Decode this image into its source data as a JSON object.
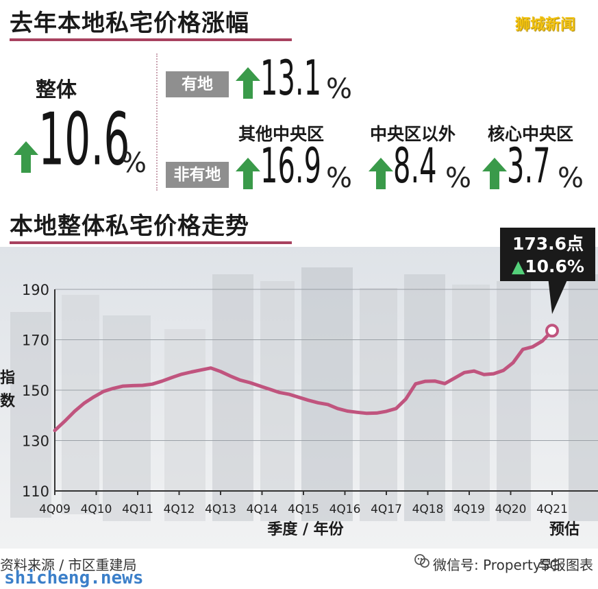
{
  "header": {
    "title": "去年本地私宅价格涨幅",
    "brand": "狮城新闻"
  },
  "summary": {
    "overall": {
      "label": "整体",
      "value": "10.6",
      "unit": "%"
    },
    "landed": {
      "tag": "有地",
      "value": "13.1",
      "unit": "%"
    },
    "non_landed": {
      "tag": "非有地",
      "value": "16.9",
      "unit": "%",
      "region": "其他中央区",
      "regions": [
        {
          "name": "中央区以外",
          "value": "8.4",
          "unit": "%"
        },
        {
          "name": "核心中央区",
          "value": "3.7",
          "unit": "%"
        }
      ]
    }
  },
  "chart_section": {
    "title": "本地整体私宅价格走势"
  },
  "chart_data": {
    "type": "line",
    "ylabel": "指数",
    "xlabel": "季度 / 年份",
    "ylim": [
      110,
      190
    ],
    "yticks": [
      110,
      130,
      150,
      170,
      190
    ],
    "grid": true,
    "x_tick_labels": [
      "4Q09",
      "4Q10",
      "4Q11",
      "4Q12",
      "4Q13",
      "4Q14",
      "4Q15",
      "4Q16",
      "4Q17",
      "4Q18",
      "4Q19",
      "4Q20",
      "4Q21"
    ],
    "forecast_label": "预估",
    "series": [
      {
        "values": [
          134.0,
          137.6,
          141.5,
          144.8,
          147.3,
          149.5,
          150.7,
          151.6,
          151.8,
          151.9,
          152.4,
          153.6,
          155.0,
          156.3,
          157.2,
          158.0,
          158.8,
          157.4,
          155.6,
          154.0,
          153.0,
          151.7,
          150.4,
          149.1,
          148.4,
          147.2,
          146.0,
          145.0,
          144.3,
          142.7,
          141.7,
          141.2,
          140.8,
          140.9,
          141.6,
          142.7,
          146.5,
          152.5,
          153.5,
          153.6,
          152.6,
          154.8,
          157.0,
          157.6,
          156.2,
          156.5,
          157.8,
          160.9,
          166.2,
          167.2,
          169.5,
          173.6
        ]
      }
    ],
    "callout": {
      "value": "173.6点",
      "change": "▲10.6%",
      "color": "#1a1a1a",
      "accent": "#54d07a"
    },
    "line_color": "#c0547e"
  },
  "footer": {
    "source": "资料来源 / 市区重建局",
    "wechat": "微信号: PropertySG",
    "credit": "早报图表",
    "watermark": "shicheng.news"
  },
  "colors": {
    "arrow": "#3a9a4a",
    "tag": "#8f8f8f",
    "underline": "#a8425f"
  }
}
